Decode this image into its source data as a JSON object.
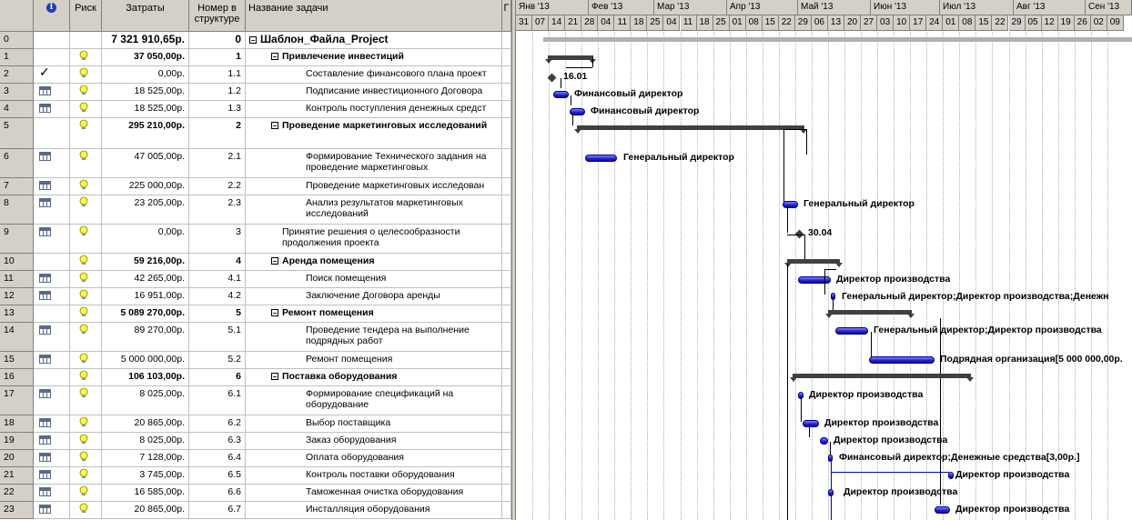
{
  "columns": {
    "id": "",
    "info": "i",
    "risk": "Риск",
    "cost": "Затраты",
    "wbs": "Номер в структуре",
    "name": "Название задачи",
    "extra": "Г"
  },
  "tasks": [
    {
      "id": "0",
      "icon": "",
      "risk": false,
      "cost": "7 321 910,65р.",
      "wbs": "0",
      "name": "Шаблон_Файла_Project",
      "level": 0,
      "summary": true,
      "root": true
    },
    {
      "id": "1",
      "icon": "",
      "risk": true,
      "cost": "37 050,00р.",
      "wbs": "1",
      "name": "Привлечение инвестиций",
      "level": 1,
      "summary": true
    },
    {
      "id": "2",
      "icon": "check",
      "risk": true,
      "cost": "0,00р.",
      "wbs": "1.1",
      "name": "Составление финансового плана проект",
      "level": 2
    },
    {
      "id": "3",
      "icon": "table",
      "risk": true,
      "cost": "18 525,00р.",
      "wbs": "1.2",
      "name": "Подписание инвестиционного Договора",
      "level": 2
    },
    {
      "id": "4",
      "icon": "table",
      "risk": true,
      "cost": "18 525,00р.",
      "wbs": "1.3",
      "name": "Контроль поступления денежных средст",
      "level": 2
    },
    {
      "id": "5",
      "icon": "",
      "risk": true,
      "cost": "295 210,00р.",
      "wbs": "2",
      "name": "Проведение маркетинговых исследований",
      "level": 1,
      "summary": true
    },
    {
      "id": "6",
      "icon": "table",
      "risk": true,
      "cost": "47 005,00р.",
      "wbs": "2.1",
      "name": "Формирование Технического задания на проведение маркетинговых",
      "level": 2
    },
    {
      "id": "7",
      "icon": "table",
      "risk": true,
      "cost": "225 000,00р.",
      "wbs": "2.2",
      "name": "Проведение маркетинговых исследован",
      "level": 2
    },
    {
      "id": "8",
      "icon": "table",
      "risk": true,
      "cost": "23 205,00р.",
      "wbs": "2.3",
      "name": "Анализ результатов маркетинговых исследований",
      "level": 2
    },
    {
      "id": "9",
      "icon": "table",
      "risk": true,
      "cost": "0,00р.",
      "wbs": "3",
      "name": "Принятие решения о целесообразности продолжения проекта",
      "level": 1
    },
    {
      "id": "10",
      "icon": "",
      "risk": true,
      "cost": "59 216,00р.",
      "wbs": "4",
      "name": "Аренда помещения",
      "level": 1,
      "summary": true
    },
    {
      "id": "11",
      "icon": "table",
      "risk": true,
      "cost": "42 265,00р.",
      "wbs": "4.1",
      "name": "Поиск помещения",
      "level": 2
    },
    {
      "id": "12",
      "icon": "table",
      "risk": true,
      "cost": "16 951,00р.",
      "wbs": "4.2",
      "name": "Заключение Договора аренды",
      "level": 2
    },
    {
      "id": "13",
      "icon": "",
      "risk": true,
      "cost": "5 089 270,00р.",
      "wbs": "5",
      "name": "Ремонт помещения",
      "level": 1,
      "summary": true
    },
    {
      "id": "14",
      "icon": "table",
      "risk": true,
      "cost": "89 270,00р.",
      "wbs": "5.1",
      "name": "Проведение тендера на выполнение подрядных работ",
      "level": 2
    },
    {
      "id": "15",
      "icon": "table",
      "risk": true,
      "cost": "5 000 000,00р.",
      "wbs": "5.2",
      "name": "Ремонт помещения",
      "level": 2
    },
    {
      "id": "16",
      "icon": "",
      "risk": true,
      "cost": "106 103,00р.",
      "wbs": "6",
      "name": "Поставка оборудования",
      "level": 1,
      "summary": true
    },
    {
      "id": "17",
      "icon": "table",
      "risk": true,
      "cost": "8 025,00р.",
      "wbs": "6.1",
      "name": "Формирование спецификаций на оборудование",
      "level": 2
    },
    {
      "id": "18",
      "icon": "table",
      "risk": true,
      "cost": "20 865,00р.",
      "wbs": "6.2",
      "name": "Выбор поставщика",
      "level": 2
    },
    {
      "id": "19",
      "icon": "table",
      "risk": true,
      "cost": "8 025,00р.",
      "wbs": "6.3",
      "name": "Заказ оборудования",
      "level": 2
    },
    {
      "id": "20",
      "icon": "table",
      "risk": true,
      "cost": "7 128,00р.",
      "wbs": "6.4",
      "name": "Оплата оборудования",
      "level": 2
    },
    {
      "id": "21",
      "icon": "table",
      "risk": true,
      "cost": "3 745,00р.",
      "wbs": "6.5",
      "name": "Контроль поставки оборудования",
      "level": 2
    },
    {
      "id": "22",
      "icon": "table",
      "risk": true,
      "cost": "16 585,00р.",
      "wbs": "6.6",
      "name": "Таможенная очистка оборудования",
      "level": 2
    },
    {
      "id": "23",
      "icon": "table",
      "risk": true,
      "cost": "20 865,00р.",
      "wbs": "6.7",
      "name": "Инсталляция оборудования",
      "level": 2
    }
  ],
  "timescale": {
    "months": [
      "Янв '13",
      "Фев '13",
      "Мар '13",
      "Апр '13",
      "Май '13",
      "Июн '13",
      "Июл '13",
      "Авг '13",
      "Сен '13"
    ],
    "weeks": [
      "31",
      "07",
      "14",
      "21",
      "28",
      "04",
      "11",
      "18",
      "25",
      "04",
      "11",
      "18",
      "25",
      "01",
      "08",
      "15",
      "22",
      "29",
      "06",
      "13",
      "20",
      "27",
      "03",
      "10",
      "17",
      "24",
      "01",
      "08",
      "15",
      "22",
      "29",
      "05",
      "12",
      "19",
      "26",
      "02",
      "09"
    ]
  },
  "gantt_labels": {
    "t2": "16.01",
    "t3": "Финансовый директор",
    "t4": "Финансовый директор",
    "t6": "Генеральный директор",
    "t8": "Генеральный директор",
    "t9": "30.04",
    "t11": "Директор производства",
    "t12": "Генеральный директор;Директор производства;Денежн",
    "t14": "Генеральный директор;Директор производства",
    "t15": "Подрядная организация[5 000 000,00р.",
    "t17": "Директор производства",
    "t18": "Директор производства",
    "t19": "Директор производства",
    "t20": "Финансовый директор;Денежные средства[3,00р.]",
    "t21": "Директор производства",
    "t22": "Директор производства",
    "t23": "Директор производства"
  },
  "colors": {
    "bar": "#2020d0",
    "summary": "#404040",
    "header": "#d4d0c8"
  }
}
